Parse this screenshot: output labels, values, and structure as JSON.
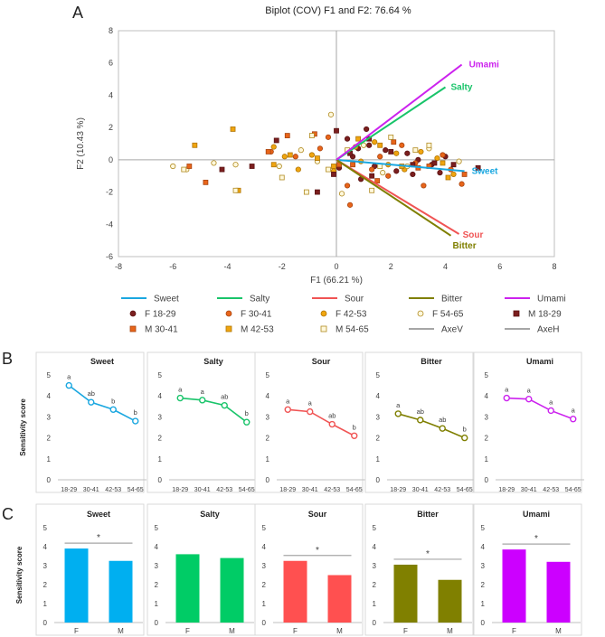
{
  "panel_labels": {
    "a": "A",
    "b": "B",
    "c": "C"
  },
  "colors": {
    "sweet": "#1aa7e0",
    "salty": "#19c46a",
    "sour": "#f05454",
    "bitter": "#7f7f00",
    "umami": "#cc22ee",
    "axis": "#bfbfbf",
    "text": "#404040"
  },
  "chart_data": [
    {
      "id": "biplot",
      "type": "scatter",
      "title": "Biplot (COV) F1 and F2: 76.64 %",
      "xlabel": "F1 (66.21 %)",
      "ylabel": "F2 (10.43 %)",
      "xlim": [
        -8,
        8
      ],
      "ylim": [
        -6,
        8
      ],
      "xticks": [
        "-8",
        "-6",
        "-4",
        "-2",
        "0",
        "2",
        "4",
        "6",
        "8"
      ],
      "yticks": [
        "8",
        "6",
        "4",
        "2",
        "0",
        "-2",
        "-4",
        "-6"
      ],
      "vectors": [
        {
          "name": "Sweet",
          "x": 4.7,
          "y": -0.7,
          "color": "#1aa7e0"
        },
        {
          "name": "Salty",
          "x": 4.0,
          "y": 4.5,
          "color": "#19c46a"
        },
        {
          "name": "Sour",
          "x": 4.5,
          "y": -4.6,
          "color": "#f05454"
        },
        {
          "name": "Bitter",
          "x": 4.2,
          "y": -4.7,
          "color": "#7f7f00"
        },
        {
          "name": "Umami",
          "x": 4.6,
          "y": 5.9,
          "color": "#cc22ee"
        }
      ],
      "groups": [
        {
          "name": "F 18-29",
          "marker": "circle",
          "fill": "#7b1f1f",
          "stroke": "#5a1010",
          "points": [
            [
              0.1,
              -0.5
            ],
            [
              0.6,
              0.2
            ],
            [
              0.8,
              0.7
            ],
            [
              1.2,
              0.9
            ],
            [
              1.8,
              0.6
            ],
            [
              2.2,
              -0.7
            ],
            [
              2.6,
              0.4
            ],
            [
              3.0,
              0.0
            ],
            [
              3.5,
              -0.3
            ],
            [
              4.0,
              0.2
            ],
            [
              1.4,
              -0.4
            ],
            [
              0.9,
              -1.2
            ],
            [
              2.8,
              -0.9
            ],
            [
              1.1,
              1.9
            ],
            [
              0.4,
              1.3
            ],
            [
              3.8,
              -0.8
            ]
          ]
        },
        {
          "name": "F 30-41",
          "marker": "circle",
          "fill": "#e8651a",
          "stroke": "#a84410",
          "points": [
            [
              -2.4,
              0.5
            ],
            [
              -1.5,
              0.2
            ],
            [
              -0.6,
              0.7
            ],
            [
              0.4,
              -1.6
            ],
            [
              0.5,
              -2.8
            ],
            [
              1.3,
              -0.6
            ],
            [
              1.9,
              -1.0
            ],
            [
              2.4,
              0.9
            ],
            [
              3.2,
              -1.6
            ],
            [
              3.9,
              0.3
            ],
            [
              4.6,
              -1.5
            ],
            [
              -0.3,
              1.4
            ],
            [
              1.6,
              0.2
            ],
            [
              2.9,
              -0.2
            ],
            [
              4.2,
              -0.6
            ]
          ]
        },
        {
          "name": "F 42-53",
          "marker": "circle",
          "fill": "#f0a510",
          "stroke": "#b07505",
          "points": [
            [
              -2.3,
              0.8
            ],
            [
              -1.4,
              -0.6
            ],
            [
              -0.9,
              0.3
            ],
            [
              -0.1,
              -0.7
            ],
            [
              0.7,
              0.8
            ],
            [
              1.4,
              1.1
            ],
            [
              1.9,
              -0.3
            ],
            [
              2.5,
              -0.6
            ],
            [
              3.1,
              0.5
            ],
            [
              3.7,
              0.1
            ],
            [
              4.3,
              -0.9
            ],
            [
              -1.9,
              0.2
            ],
            [
              0.9,
              -0.1
            ],
            [
              2.2,
              0.4
            ]
          ]
        },
        {
          "name": "F 54-65",
          "marker": "circle",
          "fill": "#fff8dc",
          "stroke": "#b08a20",
          "points": [
            [
              -6.0,
              -0.4
            ],
            [
              -5.5,
              -0.6
            ],
            [
              -4.5,
              -0.2
            ],
            [
              -3.7,
              -0.3
            ],
            [
              -2.1,
              -0.4
            ],
            [
              -1.3,
              0.6
            ],
            [
              -0.7,
              -0.1
            ],
            [
              -0.2,
              2.8
            ],
            [
              0.2,
              -2.1
            ],
            [
              1.0,
              0.9
            ],
            [
              1.7,
              -0.8
            ],
            [
              2.6,
              -0.4
            ],
            [
              3.4,
              0.7
            ],
            [
              4.5,
              -0.1
            ]
          ]
        },
        {
          "name": "M 18-29",
          "marker": "square",
          "fill": "#7b1f1f",
          "stroke": "#5a1010",
          "points": [
            [
              -4.2,
              -0.6
            ],
            [
              -3.1,
              -0.4
            ],
            [
              -2.2,
              1.2
            ],
            [
              -0.7,
              -2.0
            ],
            [
              -0.1,
              -0.9
            ],
            [
              0.0,
              1.8
            ],
            [
              0.5,
              0.4
            ],
            [
              1.3,
              -1.0
            ],
            [
              2.0,
              0.5
            ],
            [
              2.8,
              -0.3
            ],
            [
              3.6,
              -0.2
            ],
            [
              5.2,
              -0.5
            ],
            [
              1.2,
              1.3
            ],
            [
              4.3,
              -0.3
            ]
          ]
        },
        {
          "name": "M 30-41",
          "marker": "square",
          "fill": "#e8651a",
          "stroke": "#a84410",
          "points": [
            [
              -5.4,
              -0.4
            ],
            [
              -4.8,
              -1.4
            ],
            [
              -2.5,
              0.5
            ],
            [
              -1.8,
              1.5
            ],
            [
              -0.8,
              1.6
            ],
            [
              0.1,
              -0.3
            ],
            [
              0.6,
              -0.3
            ],
            [
              1.5,
              -1.3
            ],
            [
              2.1,
              1.1
            ],
            [
              3.0,
              -0.5
            ],
            [
              3.4,
              -0.4
            ],
            [
              4.7,
              -0.9
            ]
          ]
        },
        {
          "name": "M 42-53",
          "marker": "square",
          "fill": "#f0a510",
          "stroke": "#b07505",
          "points": [
            [
              -5.2,
              0.9
            ],
            [
              -3.8,
              1.9
            ],
            [
              -3.6,
              -1.9
            ],
            [
              -2.3,
              -0.3
            ],
            [
              -1.7,
              0.3
            ],
            [
              -0.7,
              0.1
            ],
            [
              -0.1,
              -0.4
            ],
            [
              0.8,
              1.3
            ],
            [
              1.6,
              0.9
            ],
            [
              2.4,
              -0.4
            ],
            [
              3.9,
              -0.2
            ],
            [
              4.1,
              -1.1
            ]
          ]
        },
        {
          "name": "M 54-65",
          "marker": "square",
          "fill": "#fff8dc",
          "stroke": "#b08a20",
          "points": [
            [
              -5.6,
              -0.6
            ],
            [
              -3.7,
              -1.9
            ],
            [
              -2.0,
              -1.1
            ],
            [
              -1.1,
              -2.0
            ],
            [
              -0.9,
              1.5
            ],
            [
              -0.3,
              -0.6
            ],
            [
              0.4,
              0.6
            ],
            [
              1.3,
              -1.9
            ],
            [
              1.6,
              -0.4
            ],
            [
              2.0,
              1.4
            ],
            [
              2.9,
              0.6
            ],
            [
              3.4,
              0.9
            ]
          ]
        }
      ],
      "legend": [
        "Sweet",
        "Salty",
        "Sour",
        "Bitter",
        "Umami",
        "F 18-29",
        "F 30-41",
        "F 42-53",
        "F 54-65",
        "M 18-29",
        "M 30-41",
        "M 42-53",
        "M 54-65",
        "AxeV",
        "AxeH"
      ]
    },
    {
      "id": "age_trends",
      "type": "line",
      "ylabel": "Sensitivity score",
      "categories": [
        "18-29",
        "30-41",
        "42-53",
        "54-65"
      ],
      "ylim": [
        0,
        5
      ],
      "yticks": [
        "0",
        "1",
        "2",
        "3",
        "4",
        "5"
      ],
      "series": [
        {
          "name": "Sweet",
          "color": "#1aa7e0",
          "values": [
            4.5,
            3.7,
            3.35,
            2.8
          ],
          "letters": [
            "a",
            "ab",
            "b",
            "b"
          ]
        },
        {
          "name": "Salty",
          "color": "#19c46a",
          "values": [
            3.9,
            3.8,
            3.55,
            2.75
          ],
          "letters": [
            "a",
            "a",
            "ab",
            "b"
          ]
        },
        {
          "name": "Sour",
          "color": "#f05454",
          "values": [
            3.35,
            3.25,
            2.65,
            2.1
          ],
          "letters": [
            "a",
            "a",
            "ab",
            "b"
          ]
        },
        {
          "name": "Bitter",
          "color": "#7f7f00",
          "values": [
            3.15,
            2.85,
            2.45,
            2.0
          ],
          "letters": [
            "a",
            "ab",
            "ab",
            "b"
          ]
        },
        {
          "name": "Umami",
          "color": "#cc22ee",
          "values": [
            3.9,
            3.85,
            3.3,
            2.9
          ],
          "letters": [
            "a",
            "a",
            "a",
            "a"
          ]
        }
      ]
    },
    {
      "id": "sex_bars",
      "type": "bar",
      "ylabel": "Sensitivity score",
      "categories": [
        "F",
        "M"
      ],
      "ylim": [
        0,
        5
      ],
      "yticks": [
        "0",
        "1",
        "2",
        "3",
        "4",
        "5"
      ],
      "series": [
        {
          "name": "Sweet",
          "color": "#00aff0",
          "values": [
            3.9,
            3.25
          ],
          "sig": "*"
        },
        {
          "name": "Salty",
          "color": "#00cc66",
          "values": [
            3.6,
            3.4
          ],
          "sig": ""
        },
        {
          "name": "Sour",
          "color": "#ff5050",
          "values": [
            3.25,
            2.5
          ],
          "sig": "*"
        },
        {
          "name": "Bitter",
          "color": "#808000",
          "values": [
            3.05,
            2.25
          ],
          "sig": "*"
        },
        {
          "name": "Umami",
          "color": "#cc00ff",
          "values": [
            3.85,
            3.2
          ],
          "sig": "*"
        }
      ]
    }
  ]
}
